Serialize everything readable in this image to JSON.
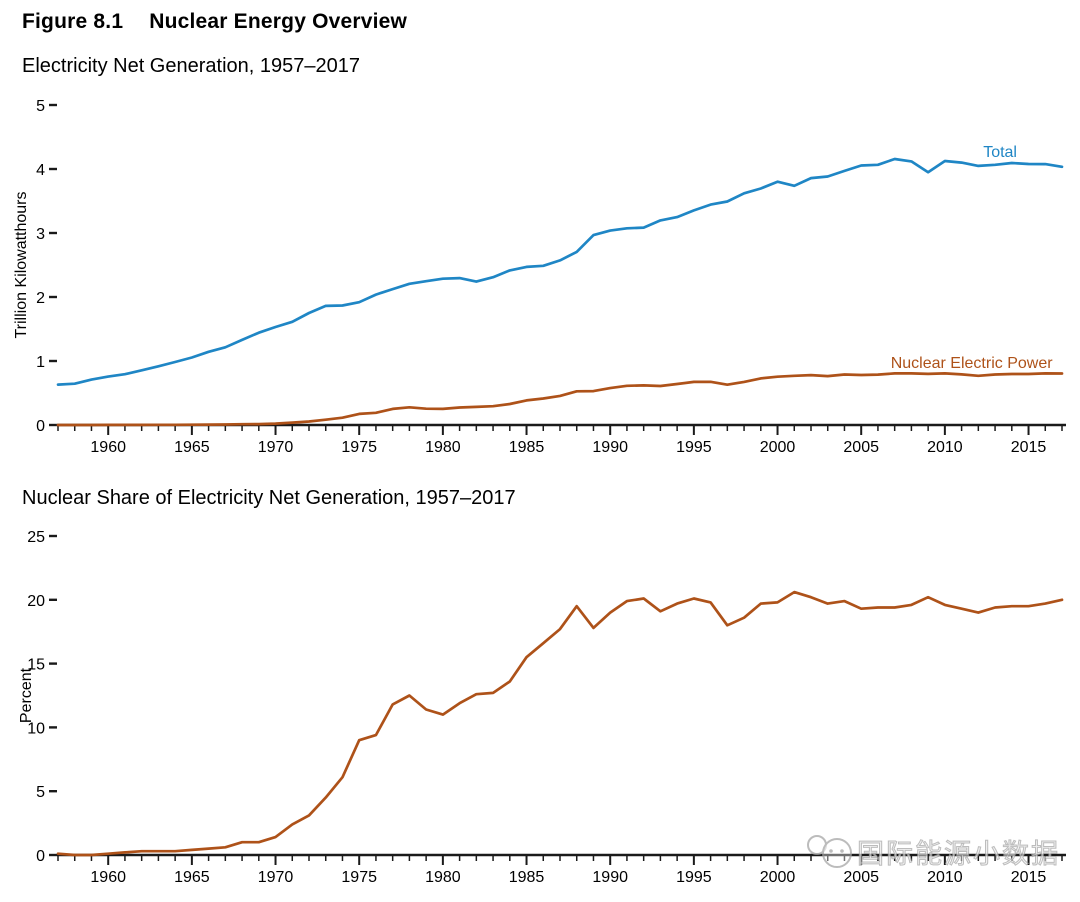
{
  "header": {
    "figure_label": "Figure 8.1",
    "figure_title": "Nuclear Energy Overview"
  },
  "watermark": {
    "icon": "smiley-logo-icon",
    "text": "国际能源小数据",
    "color": "#a6a6a6"
  },
  "colors": {
    "total_line": "#1F86C5",
    "nuclear_line": "#AE5219",
    "axis": "#1a1a1a",
    "text": "#000000"
  },
  "chart_data": [
    {
      "type": "line",
      "title": "Electricity Net Generation, 1957–2017",
      "xlabel": "",
      "ylabel": "Trillion Kilowatthours",
      "ylim": [
        0,
        5
      ],
      "yticks": [
        0,
        1,
        2,
        3,
        4,
        5
      ],
      "xlim": [
        1957,
        2017
      ],
      "xticks": [
        1960,
        1965,
        1970,
        1975,
        1980,
        1985,
        1990,
        1995,
        2000,
        2005,
        2010,
        2015
      ],
      "grid": false,
      "legend_position": "inline-labels-right",
      "x": [
        1957,
        1958,
        1959,
        1960,
        1961,
        1962,
        1963,
        1964,
        1965,
        1966,
        1967,
        1968,
        1969,
        1970,
        1971,
        1972,
        1973,
        1974,
        1975,
        1976,
        1977,
        1978,
        1979,
        1980,
        1981,
        1982,
        1983,
        1984,
        1985,
        1986,
        1987,
        1988,
        1989,
        1990,
        1991,
        1992,
        1993,
        1994,
        1995,
        1996,
        1997,
        1998,
        1999,
        2000,
        2001,
        2002,
        2003,
        2004,
        2005,
        2006,
        2007,
        2008,
        2009,
        2010,
        2011,
        2012,
        2013,
        2014,
        2015,
        2016,
        2017
      ],
      "series": [
        {
          "name": "Total",
          "color": "#1F86C5",
          "values": [
            0.632,
            0.645,
            0.71,
            0.756,
            0.794,
            0.855,
            0.917,
            0.984,
            1.055,
            1.144,
            1.214,
            1.329,
            1.442,
            1.532,
            1.613,
            1.75,
            1.861,
            1.867,
            1.918,
            2.038,
            2.124,
            2.206,
            2.247,
            2.286,
            2.295,
            2.241,
            2.31,
            2.416,
            2.47,
            2.487,
            2.572,
            2.704,
            2.967,
            3.038,
            3.074,
            3.084,
            3.197,
            3.248,
            3.353,
            3.444,
            3.492,
            3.62,
            3.695,
            3.802,
            3.737,
            3.858,
            3.883,
            3.971,
            4.055,
            4.065,
            4.157,
            4.119,
            3.95,
            4.125,
            4.1,
            4.048,
            4.066,
            4.094,
            4.078,
            4.077,
            4.035
          ]
        },
        {
          "name": "Nuclear Electric Power",
          "color": "#AE5219",
          "values": [
            0.0,
            0.0,
            0.0,
            0.001,
            0.002,
            0.002,
            0.003,
            0.003,
            0.004,
            0.006,
            0.008,
            0.013,
            0.014,
            0.022,
            0.038,
            0.054,
            0.083,
            0.114,
            0.173,
            0.191,
            0.251,
            0.276,
            0.255,
            0.251,
            0.273,
            0.283,
            0.294,
            0.328,
            0.384,
            0.414,
            0.455,
            0.527,
            0.529,
            0.577,
            0.613,
            0.619,
            0.61,
            0.64,
            0.673,
            0.675,
            0.629,
            0.674,
            0.728,
            0.754,
            0.769,
            0.78,
            0.764,
            0.789,
            0.782,
            0.787,
            0.806,
            0.806,
            0.799,
            0.807,
            0.79,
            0.769,
            0.789,
            0.797,
            0.797,
            0.806,
            0.805
          ]
        }
      ]
    },
    {
      "type": "line",
      "title": "Nuclear Share of Electricity Net Generation, 1957–2017",
      "xlabel": "",
      "ylabel": "Percent",
      "ylim": [
        0,
        25
      ],
      "yticks": [
        0,
        5,
        10,
        15,
        20,
        25
      ],
      "xlim": [
        1957,
        2017
      ],
      "xticks": [
        1960,
        1965,
        1970,
        1975,
        1980,
        1985,
        1990,
        1995,
        2000,
        2005,
        2010,
        2015
      ],
      "grid": false,
      "legend_position": "none",
      "x": [
        1957,
        1958,
        1959,
        1960,
        1961,
        1962,
        1963,
        1964,
        1965,
        1966,
        1967,
        1968,
        1969,
        1970,
        1971,
        1972,
        1973,
        1974,
        1975,
        1976,
        1977,
        1978,
        1979,
        1980,
        1981,
        1982,
        1983,
        1984,
        1985,
        1986,
        1987,
        1988,
        1989,
        1990,
        1991,
        1992,
        1993,
        1994,
        1995,
        1996,
        1997,
        1998,
        1999,
        2000,
        2001,
        2002,
        2003,
        2004,
        2005,
        2006,
        2007,
        2008,
        2009,
        2010,
        2011,
        2012,
        2013,
        2014,
        2015,
        2016,
        2017
      ],
      "series": [
        {
          "name": "Nuclear Share",
          "color": "#AE5219",
          "values": [
            0.1,
            0.0,
            0.0,
            0.1,
            0.2,
            0.3,
            0.3,
            0.3,
            0.4,
            0.5,
            0.6,
            1.0,
            1.0,
            1.4,
            2.4,
            3.1,
            4.5,
            6.1,
            9.0,
            9.4,
            11.8,
            12.5,
            11.4,
            11.0,
            11.9,
            12.6,
            12.7,
            13.6,
            15.5,
            16.6,
            17.7,
            19.5,
            17.8,
            19.0,
            19.9,
            20.1,
            19.1,
            19.7,
            20.1,
            19.8,
            18.0,
            18.6,
            19.7,
            19.8,
            20.6,
            20.2,
            19.7,
            19.9,
            19.3,
            19.4,
            19.4,
            19.6,
            20.2,
            19.6,
            19.3,
            19.0,
            19.4,
            19.5,
            19.5,
            19.7,
            20.0
          ]
        }
      ]
    }
  ]
}
